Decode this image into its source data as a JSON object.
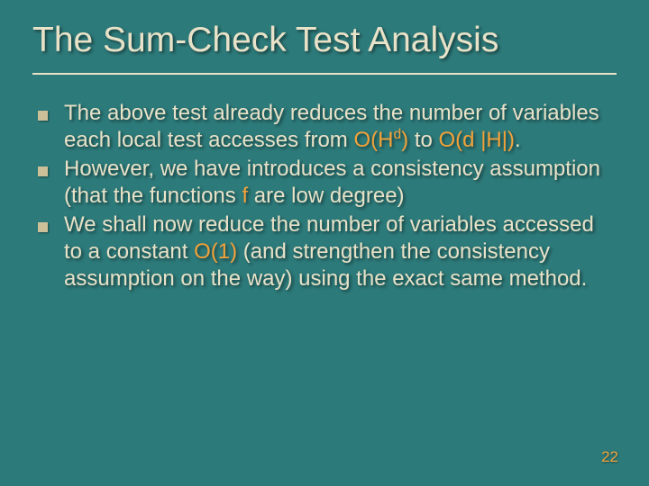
{
  "slide": {
    "background_color": "#2d7a7a",
    "text_color": "#e8e2c8",
    "highlight_color": "#f2a23a",
    "bullet_color": "#ccc099",
    "shadow_color": "rgba(0,0,0,0.5)",
    "font_family": "Comic Sans MS",
    "title": {
      "text": "The Sum-Check Test Analysis",
      "fontsize": 39
    },
    "bullets": [
      {
        "segments": [
          {
            "t": "The above test already reduces the number of variables each local test accesses from ",
            "hl": false
          },
          {
            "t": "O(H",
            "hl": true
          },
          {
            "t": "d",
            "hl": true,
            "sup": true
          },
          {
            "t": ")",
            "hl": true
          },
          {
            "t": " to ",
            "hl": false
          },
          {
            "t": "O(d |H|)",
            "hl": true
          },
          {
            "t": ".",
            "hl": false
          }
        ]
      },
      {
        "segments": [
          {
            "t": "However, we have introduces a consistency assumption (that the functions ",
            "hl": false
          },
          {
            "t": "f",
            "hl": true
          },
          {
            "t": " are low degree)",
            "hl": false
          }
        ]
      },
      {
        "segments": [
          {
            "t": "We shall now reduce the number of variables accessed to a constant ",
            "hl": false
          },
          {
            "t": "O(1)",
            "hl": true
          },
          {
            "t": " (and strengthen the consistency assumption on the way) using the exact same method.",
            "hl": false
          }
        ]
      }
    ],
    "body_fontsize": 24,
    "page_number": "22"
  }
}
